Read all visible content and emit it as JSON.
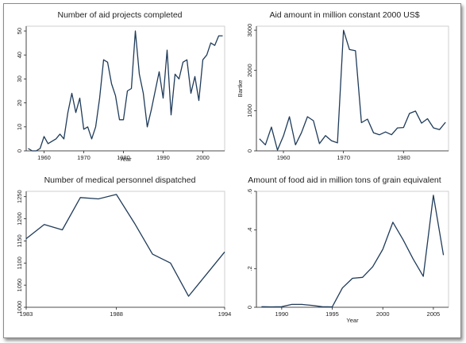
{
  "chart_data": [
    {
      "type": "line",
      "title": "Number of aid projects completed",
      "xlabel": "Year",
      "ylabel": "",
      "xlim": [
        1955.5,
        2005.5
      ],
      "ylim": [
        0,
        52
      ],
      "xticks": [
        1960,
        1970,
        1980,
        1990,
        2000
      ],
      "yticks": [
        0,
        10,
        20,
        30,
        40,
        50
      ],
      "x": [
        1956,
        1957,
        1958,
        1959,
        1960,
        1961,
        1962,
        1963,
        1964,
        1965,
        1966,
        1967,
        1968,
        1969,
        1970,
        1971,
        1972,
        1973,
        1974,
        1975,
        1976,
        1977,
        1978,
        1979,
        1980,
        1981,
        1982,
        1983,
        1984,
        1985,
        1986,
        1987,
        1988,
        1989,
        1990,
        1991,
        1992,
        1993,
        1994,
        1995,
        1996,
        1997,
        1998,
        1999,
        2000,
        2001,
        2002,
        2003,
        2004,
        2005
      ],
      "values": [
        1,
        0,
        0,
        1,
        6,
        3,
        4,
        5,
        7,
        5,
        16,
        24,
        16,
        22,
        9,
        10,
        5,
        10,
        22,
        38,
        37,
        28,
        23,
        13,
        13,
        25,
        26,
        50,
        32,
        24,
        10,
        17,
        25,
        33,
        22,
        42,
        15,
        32,
        30,
        37,
        38,
        24,
        31,
        21,
        38,
        40,
        45,
        44,
        48,
        48
      ]
    },
    {
      "type": "line",
      "title": "Aid amount in million constant 2000 US$",
      "xlabel": "",
      "ylabel": "Bartke",
      "xlim": [
        1955.5,
        1987.5
      ],
      "ylim": [
        0,
        3100
      ],
      "xticks": [
        1960,
        1970,
        1980
      ],
      "yticks": [
        0,
        1000,
        2000,
        3000
      ],
      "x": [
        1956,
        1957,
        1958,
        1959,
        1960,
        1961,
        1962,
        1963,
        1964,
        1965,
        1966,
        1967,
        1968,
        1969,
        1970,
        1971,
        1972,
        1973,
        1974,
        1975,
        1976,
        1977,
        1978,
        1979,
        1980,
        1981,
        1982,
        1983,
        1984,
        1985,
        1986,
        1987
      ],
      "values": [
        300,
        150,
        590,
        20,
        370,
        850,
        150,
        450,
        850,
        750,
        180,
        380,
        250,
        200,
        3000,
        2520,
        2490,
        700,
        790,
        450,
        400,
        470,
        400,
        570,
        580,
        930,
        990,
        690,
        800,
        570,
        530,
        710
      ]
    },
    {
      "type": "line",
      "title": "Number of medical personnel dispatched",
      "xlabel": "",
      "ylabel": "",
      "xlim": [
        1983,
        1994
      ],
      "ylim": [
        1000,
        1262
      ],
      "xticks": [
        1983,
        1988,
        1994
      ],
      "yticks": [
        1000,
        1050,
        1100,
        1150,
        1200,
        1250
      ],
      "x": [
        1983,
        1984,
        1985,
        1986,
        1987,
        1988,
        1989,
        1990,
        1991,
        1992,
        1993,
        1994
      ],
      "values": [
        1155,
        1187,
        1175,
        1248,
        1245,
        1255,
        1190,
        1120,
        1100,
        1025,
        1075,
        1125
      ]
    },
    {
      "type": "line",
      "title": "Amount of food aid in million tons of grain equivalent",
      "xlabel": "Year",
      "ylabel": "",
      "xlim": [
        1987.5,
        2006.5
      ],
      "ylim": [
        0,
        0.6
      ],
      "xticks": [
        1990,
        1995,
        2000,
        2005
      ],
      "yticks": [
        0,
        0.2,
        0.4,
        0.6
      ],
      "ytick_labels": [
        "0",
        ".2",
        ".4",
        ".6"
      ],
      "x": [
        1988,
        1989,
        1990,
        1991,
        1992,
        1993,
        1994,
        1995,
        1996,
        1997,
        1998,
        1999,
        2000,
        2001,
        2002,
        2003,
        2004,
        2005,
        2006
      ],
      "values": [
        0.003,
        0.002,
        0.003,
        0.015,
        0.015,
        0.01,
        0.003,
        0.002,
        0.1,
        0.15,
        0.155,
        0.21,
        0.3,
        0.44,
        0.35,
        0.25,
        0.16,
        0.58,
        0.27
      ]
    }
  ]
}
